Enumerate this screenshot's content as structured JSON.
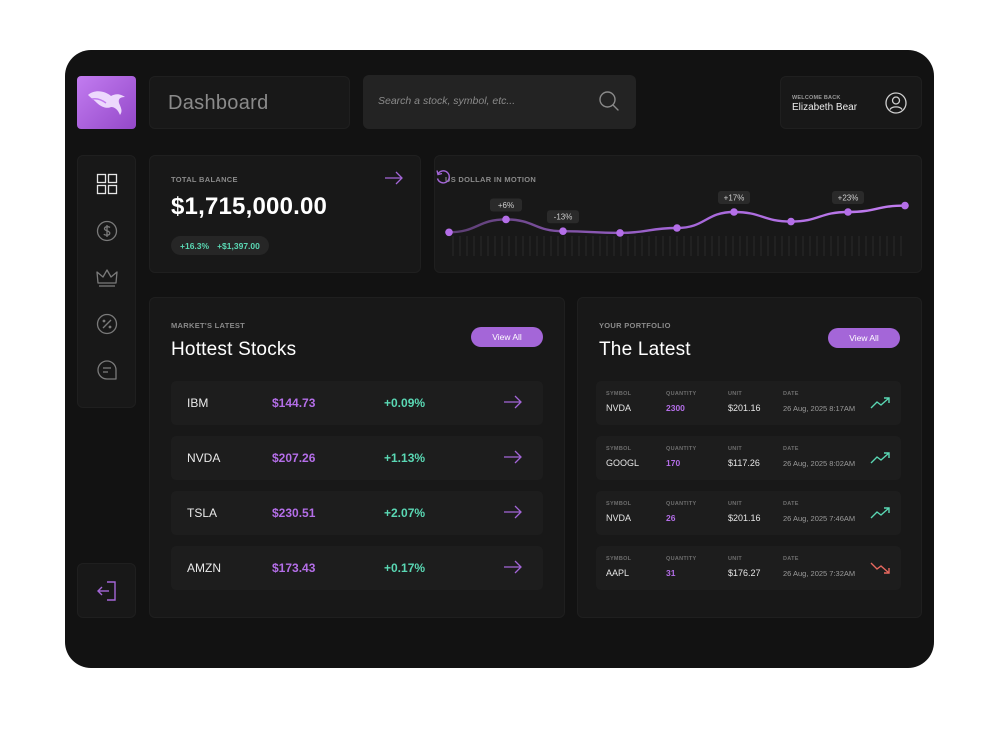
{
  "header": {
    "title": "Dashboard",
    "search_placeholder": "Search a stock,  symbol, etc...",
    "welcome_label": "WELCOME BACK",
    "user_name": "Elizabeth Bear"
  },
  "sidebar": {
    "items": [
      {
        "name": "dashboard-grid-icon"
      },
      {
        "name": "dollar-coin-icon"
      },
      {
        "name": "crown-icon"
      },
      {
        "name": "percent-icon"
      },
      {
        "name": "message-search-icon"
      }
    ],
    "logout_icon": "logout-icon"
  },
  "balance": {
    "label": "TOTAL BALANCE",
    "amount": "$1,715,000.00",
    "change_percent": "+16.3%",
    "change_amount": "+$1,397.00"
  },
  "chart_data": {
    "type": "line",
    "title": "US DOLLAR IN MOTION",
    "x": [
      0,
      1,
      2,
      3,
      4,
      5,
      6,
      7,
      8
    ],
    "values": [
      1,
      13,
      2,
      0.4,
      5,
      20,
      11,
      20,
      26
    ],
    "ylim": [
      -10,
      35
    ],
    "annotations": [
      {
        "point": 1,
        "text": "+6%"
      },
      {
        "point": 2,
        "text": "-13%"
      },
      {
        "point": 5,
        "text": "+17%"
      },
      {
        "point": 7,
        "text": "+23%"
      }
    ],
    "line_color": "#a466d8",
    "grid": false
  },
  "stocks": {
    "eyebrow": "MARKET'S LATEST",
    "title": "Hottest Stocks",
    "view_all": "View All",
    "rows": [
      {
        "symbol": "IBM",
        "price": "$144.73",
        "change": "+0.09%"
      },
      {
        "symbol": "NVDA",
        "price": "$207.26",
        "change": "+1.13%"
      },
      {
        "symbol": "TSLA",
        "price": "$230.51",
        "change": "+2.07%"
      },
      {
        "symbol": "AMZN",
        "price": "$173.43",
        "change": "+0.17%"
      }
    ]
  },
  "portfolio": {
    "eyebrow": "YOUR PORTFOLIO",
    "title": "The Latest",
    "view_all": "View All",
    "headers": {
      "symbol": "SYMBOL",
      "quantity": "QUANTITY",
      "unit": "UNIT",
      "date": "DATE"
    },
    "rows": [
      {
        "symbol": "NVDA",
        "quantity": "2300",
        "unit": "$201.16",
        "date": "26 Aug, 2025 8:17AM",
        "trend": "up"
      },
      {
        "symbol": "GOOGL",
        "quantity": "170",
        "unit": "$117.26",
        "date": "26 Aug, 2025 8:02AM",
        "trend": "up"
      },
      {
        "symbol": "NVDA",
        "quantity": "26",
        "unit": "$201.16",
        "date": "26 Aug, 2025 7:46AM",
        "trend": "up"
      },
      {
        "symbol": "AAPL",
        "quantity": "31",
        "unit": "$176.27",
        "date": "26 Aug, 2025 7:32AM",
        "trend": "down"
      }
    ]
  },
  "colors": {
    "accent": "#a466d8",
    "positive": "#5ad8b4",
    "negative": "#e8685f",
    "background": "#121212"
  }
}
